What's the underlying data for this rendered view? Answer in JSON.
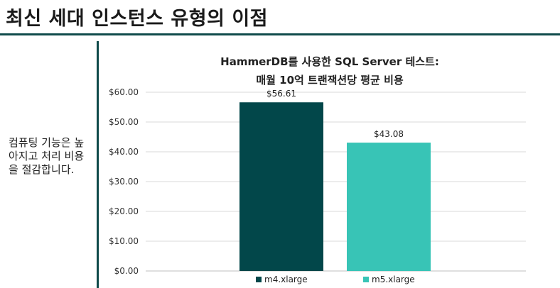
{
  "page": {
    "title": "최신 세대 인스턴스 유형의 이점",
    "side_text": "컴퓨팅 기능은 높아지고 처리 비용을 절감합니다."
  },
  "colors": {
    "accent": "#0f4a4a",
    "bar_m4": "#02474a",
    "bar_m5": "#38c4b6"
  },
  "chart_data": {
    "type": "bar",
    "title": "HammerDB를 사용한 SQL Server 테스트:",
    "subtitle": "매월 10억 트랜잭션당 평균 비용",
    "categories": [
      "m4.xlarge",
      "m5.xlarge"
    ],
    "values": [
      56.61,
      43.08
    ],
    "data_labels": [
      "$56.61",
      "$43.08"
    ],
    "yticks": [
      "$0.00",
      "$10.00",
      "$20.00",
      "$30.00",
      "$40.00",
      "$50.00",
      "$60.00"
    ],
    "ylim": [
      0,
      60
    ],
    "xlabel": "",
    "ylabel": "",
    "grid": true,
    "legend": [
      "m4.xlarge",
      "m5.xlarge"
    ],
    "legend_position": "bottom"
  }
}
